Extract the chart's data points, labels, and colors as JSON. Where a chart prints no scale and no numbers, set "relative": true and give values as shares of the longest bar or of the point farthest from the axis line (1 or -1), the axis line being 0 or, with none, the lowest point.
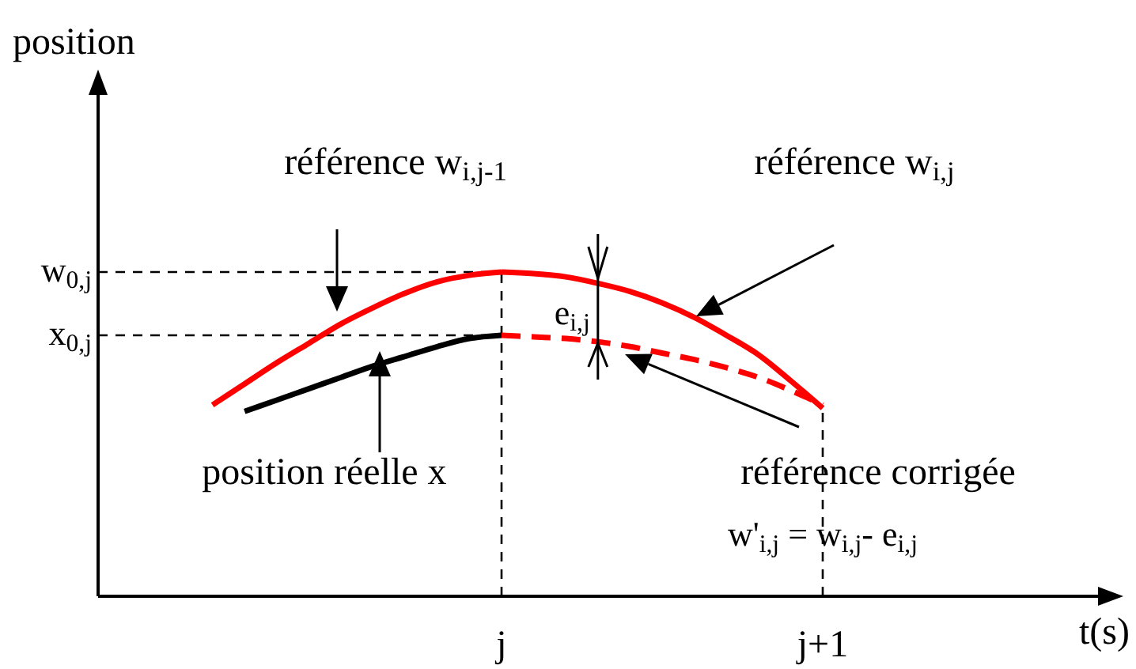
{
  "chart_data": {
    "type": "line",
    "relative": true,
    "categories": [
      null,
      null,
      null,
      null,
      null,
      null,
      null,
      null,
      null,
      null,
      "j",
      null,
      null,
      null,
      null,
      null,
      null,
      null,
      null,
      null,
      "j+1"
    ],
    "series": [
      {
        "color": "#ff0000",
        "values": [
          null,
          0.59,
          0.655,
          0.72,
          0.78,
          0.84,
          0.89,
          0.935,
          0.97,
          0.99,
          1,
          null,
          null,
          null,
          null,
          null,
          null,
          null,
          null,
          null,
          null
        ]
      },
      {
        "color": "#ff0000",
        "values": [
          null,
          null,
          null,
          null,
          null,
          null,
          null,
          null,
          null,
          null,
          1,
          0.995,
          0.985,
          0.965,
          0.94,
          0.905,
          0.86,
          0.805,
          0.745,
          0.665,
          0.58
        ]
      },
      {
        "color": "#000000",
        "values": [
          null,
          null,
          0.57,
          0.605,
          0.64,
          0.675,
          0.71,
          0.74,
          0.77,
          0.795,
          0.805,
          null,
          null,
          null,
          null,
          null,
          null,
          null,
          null,
          null,
          null
        ]
      },
      {
        "color": "#ff0000",
        "line_style": "dashed",
        "values": [
          null,
          null,
          null,
          null,
          null,
          null,
          null,
          null,
          null,
          null,
          0.805,
          0.8,
          0.795,
          0.785,
          0.77,
          0.75,
          0.73,
          0.705,
          0.675,
          0.635,
          0.59
        ]
      }
    ],
    "ref_lines": [
      {
        "axis": "y",
        "value": 1,
        "label": "w$_{0,j}$",
        "line_style": "dashed",
        "color": "#000000"
      },
      {
        "axis": "y",
        "value": 0.805,
        "label": "x$_{0,j}$",
        "line_style": "dashed",
        "color": "#000000"
      },
      {
        "axis": "x",
        "value": "j",
        "line_style": "dashed",
        "color": "#000000"
      },
      {
        "axis": "x",
        "value": "j+1",
        "line_style": "dashed",
        "color": "#000000"
      }
    ],
    "annotations": [
      "référence w$_{i,j-1}$",
      "référence w$_{i,j}$",
      "position réelle x",
      "référence corrigée",
      "w'$_{i,j}$ = w$_{i,j}$- e$_{i,j}$",
      "e$_{i,j}$",
      "position",
      "t(s)"
    ]
  }
}
